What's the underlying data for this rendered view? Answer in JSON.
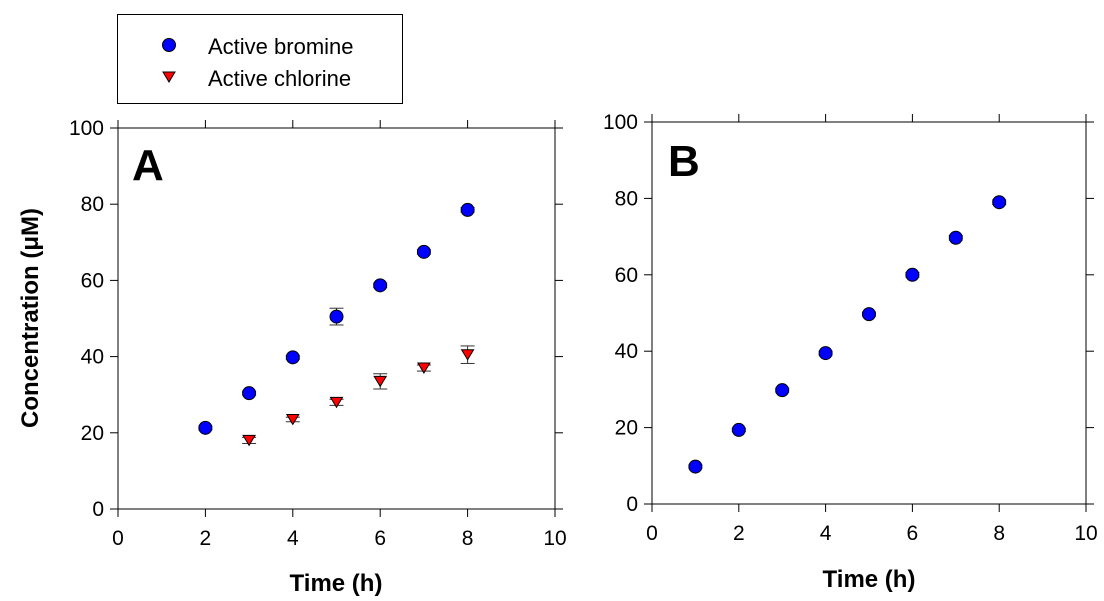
{
  "legend": {
    "items": [
      {
        "label": "Active bromine",
        "color": "#0000ff",
        "symbol": "circle"
      },
      {
        "label": "Active chlorine",
        "color": "#ff0000",
        "symbol": "triangle-down"
      }
    ]
  },
  "chart_data": [
    {
      "type": "scatter",
      "panel_label": "A",
      "xlabel": "Time (h)",
      "ylabel": "Concentration (μM)",
      "xlim": [
        0,
        10
      ],
      "ylim": [
        0,
        100
      ],
      "xticks": [
        0,
        2,
        4,
        6,
        8,
        10
      ],
      "yticks": [
        0,
        20,
        40,
        60,
        80,
        100
      ],
      "grid": false,
      "series": [
        {
          "name": "Active bromine",
          "color": "#0000ff",
          "marker": "circle",
          "x": [
            2,
            3,
            4,
            5,
            6,
            7,
            8
          ],
          "y": [
            21.3,
            30.4,
            39.8,
            50.5,
            58.7,
            67.5,
            78.5
          ],
          "err": [
            0.5,
            0.5,
            0.5,
            2.2,
            0.6,
            0.6,
            0.6
          ]
        },
        {
          "name": "Active chlorine",
          "color": "#ff0000",
          "marker": "triangle-down",
          "x": [
            3,
            4,
            5,
            6,
            7,
            8
          ],
          "y": [
            18.0,
            23.5,
            28.0,
            33.5,
            37.0,
            40.5
          ],
          "err": [
            0.8,
            0.6,
            0.8,
            2.0,
            0.8,
            2.3
          ]
        }
      ]
    },
    {
      "type": "scatter",
      "panel_label": "B",
      "xlabel": "Time (h)",
      "ylabel": "",
      "xlim": [
        0,
        10
      ],
      "ylim": [
        0,
        100
      ],
      "xticks": [
        0,
        2,
        4,
        6,
        8,
        10
      ],
      "yticks": [
        0,
        20,
        40,
        60,
        80,
        100
      ],
      "grid": false,
      "series": [
        {
          "name": "Active bromine",
          "color": "#0000ff",
          "marker": "circle",
          "x": [
            1,
            2,
            3,
            4,
            5,
            6,
            7,
            8
          ],
          "y": [
            9.8,
            19.4,
            29.8,
            39.5,
            49.7,
            60.0,
            69.7,
            79.0
          ],
          "err": [
            0.4,
            0.4,
            0.5,
            0.5,
            0.5,
            0.6,
            0.6,
            0.6
          ]
        }
      ]
    }
  ]
}
